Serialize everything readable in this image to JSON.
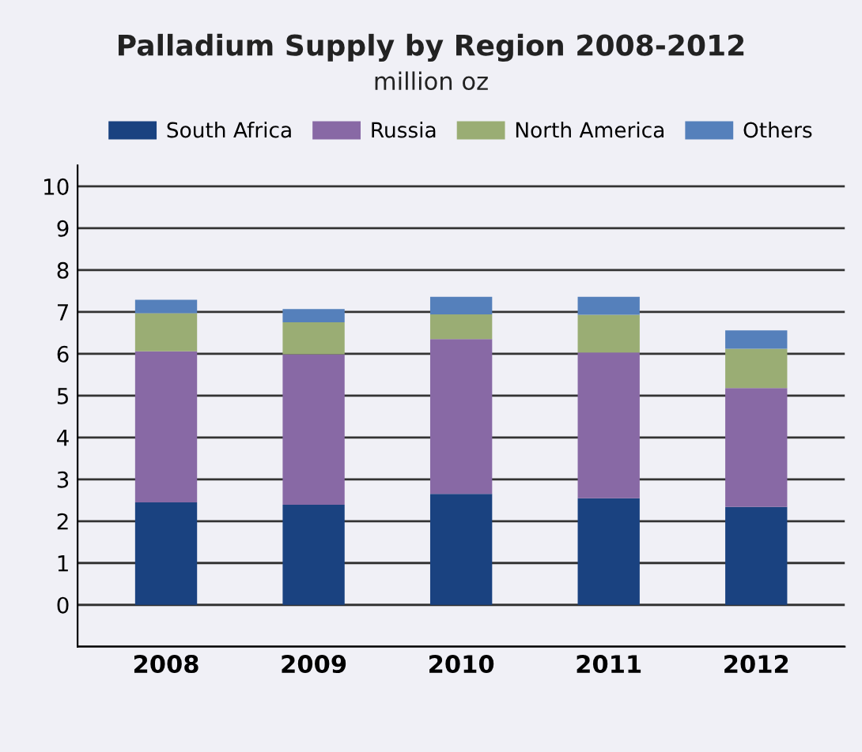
{
  "chart_data": {
    "type": "bar",
    "title": "Palladium Supply by Region 2008-2012",
    "subtitle": "million oz",
    "categories": [
      "2008",
      "2009",
      "2010",
      "2011",
      "2012"
    ],
    "stacked": true,
    "series": [
      {
        "name": "South Africa",
        "color": "#1a4280",
        "values": [
          2.45,
          2.39,
          2.65,
          2.55,
          2.34
        ]
      },
      {
        "name": "Russia",
        "color": "#8869a5",
        "values": [
          3.61,
          3.6,
          3.7,
          3.48,
          2.84
        ]
      },
      {
        "name": "North America",
        "color": "#9aad74",
        "values": [
          0.91,
          0.76,
          0.59,
          0.9,
          0.94
        ]
      },
      {
        "name": "Others",
        "color": "#5580bb",
        "values": [
          0.32,
          0.32,
          0.42,
          0.43,
          0.44
        ]
      }
    ],
    "ylim": [
      -1,
      10.5
    ],
    "yticks": [
      {
        "value": -1,
        "label": null
      },
      0,
      1,
      2,
      3,
      4,
      5,
      6,
      7,
      8,
      9,
      10
    ],
    "grid": "y",
    "legend": "top"
  }
}
